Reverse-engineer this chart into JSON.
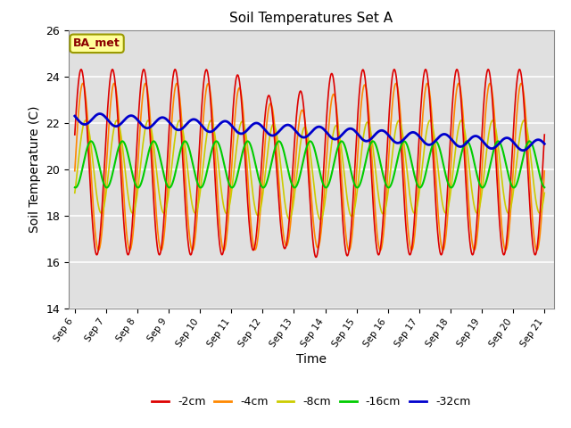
{
  "title": "Soil Temperatures Set A",
  "xlabel": "Time",
  "ylabel": "Soil Temperature (C)",
  "ylim": [
    14,
    26
  ],
  "annotation": "BA_met",
  "series_labels": [
    "-2cm",
    "-4cm",
    "-8cm",
    "-16cm",
    "-32cm"
  ],
  "series_colors": [
    "#dd0000",
    "#ff8800",
    "#cccc00",
    "#00cc00",
    "#0000cc"
  ],
  "background_color": "#e0e0e0",
  "grid_color": "#ffffff",
  "tick_labels": [
    "Sep 6",
    "Sep 7",
    "Sep 8",
    "Sep 9",
    "Sep 10",
    "Sep 11",
    "Sep 12",
    "Sep 13",
    "Sep 14",
    "Sep 15",
    "Sep 16",
    "Sep 17",
    "Sep 18",
    "Sep 19",
    "Sep 20",
    "Sep 21"
  ]
}
